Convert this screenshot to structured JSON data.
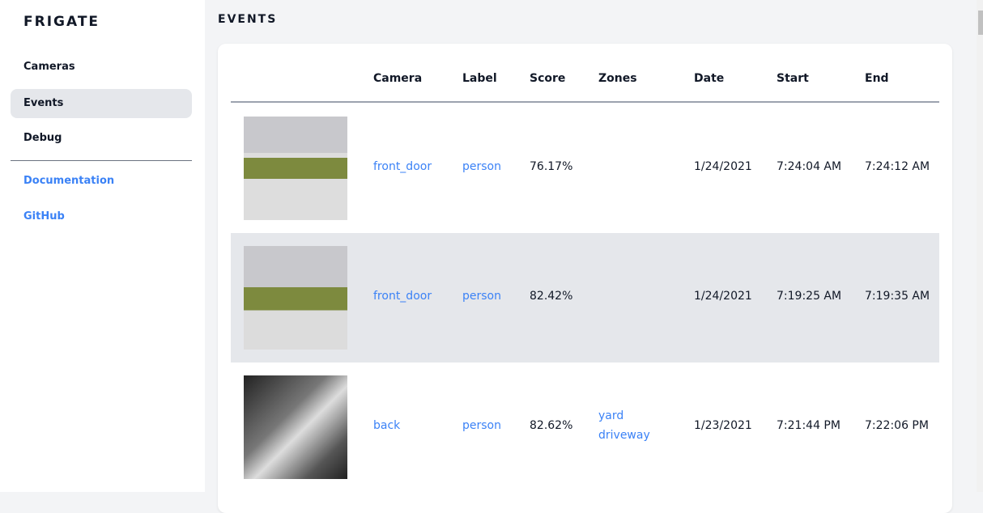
{
  "sidebar": {
    "brand": "FRIGATE",
    "items": [
      {
        "label": "Cameras"
      },
      {
        "label": "Events"
      },
      {
        "label": "Debug"
      }
    ],
    "links": [
      {
        "label": "Documentation"
      },
      {
        "label": "GitHub"
      }
    ]
  },
  "page": {
    "title": "EVENTS"
  },
  "table": {
    "headers": [
      "Camera",
      "Label",
      "Score",
      "Zones",
      "Date",
      "Start",
      "End"
    ],
    "rows": [
      {
        "camera": "front_door",
        "label": "person",
        "score": "76.17%",
        "zones": [
          "",
          ""
        ],
        "date": "1/24/2021",
        "start": "7:24:04 AM",
        "end": "7:24:12 AM"
      },
      {
        "camera": "front_door",
        "label": "person",
        "score": "82.42%",
        "zones": [
          "",
          ""
        ],
        "date": "1/24/2021",
        "start": "7:19:25 AM",
        "end": "7:19:35 AM"
      },
      {
        "camera": "back",
        "label": "person",
        "score": "82.62%",
        "zones": [
          "yard",
          "driveway"
        ],
        "date": "1/23/2021",
        "start": "7:21:44 PM",
        "end": "7:22:06 PM"
      }
    ]
  },
  "colors": {
    "accent": "#3b82f6",
    "active_bg": "#e5e7eb"
  }
}
